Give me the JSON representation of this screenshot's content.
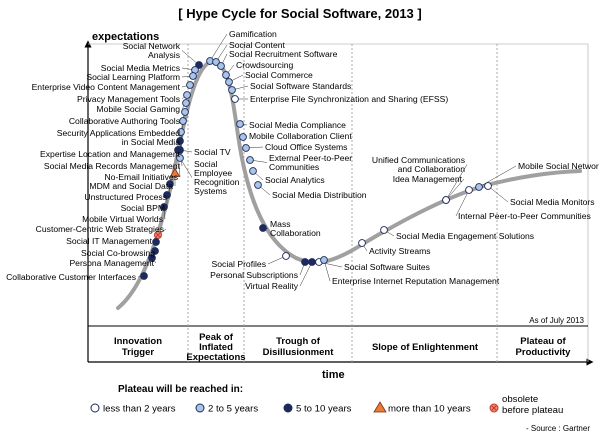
{
  "chart_data": {
    "type": "scatter",
    "title": "[ Hype Cycle for Social Software, 2013 ]",
    "ylabel": "expectations",
    "xlabel": "time",
    "as_of": "As of July 2013",
    "source": "-  Source : Gartner",
    "phases": [
      "Innovation Trigger",
      "Peak of Inflated Expectations",
      "Trough of Disillusionment",
      "Slope of Enlightenment",
      "Plateau of Productivity"
    ],
    "legend": {
      "title": "Plateau will be reached in:",
      "items": [
        {
          "key": "lt2",
          "label": "less than 2 years",
          "fill": "#ffffff"
        },
        {
          "key": "2to5",
          "label": "2 to 5 years",
          "fill": "#a9c6e6"
        },
        {
          "key": "5to10",
          "label": "5 to 10 years",
          "fill": "#1d2a5c"
        },
        {
          "key": "gt10",
          "label": "more than 10 years",
          "fill": "#e87a3a"
        },
        {
          "key": "obsolete",
          "label": "obsolete before plateau",
          "fill": "#f08a6a"
        }
      ]
    },
    "technologies": [
      {
        "name": "Gamification",
        "cat": "2to5"
      },
      {
        "name": "Social Content",
        "cat": "2to5"
      },
      {
        "name": "Social Recruitment Software",
        "cat": "2to5"
      },
      {
        "name": "Social Network Analysis",
        "cat": "5to10"
      },
      {
        "name": "Crowdsourcing",
        "cat": "2to5"
      },
      {
        "name": "Social Media Metrics",
        "cat": "2to5"
      },
      {
        "name": "Social Commerce",
        "cat": "2to5"
      },
      {
        "name": "Social Learning Platform",
        "cat": "2to5"
      },
      {
        "name": "Social Software Standards",
        "cat": "2to5"
      },
      {
        "name": "Enterprise Video Content Management",
        "cat": "2to5"
      },
      {
        "name": "Enterprise File Synchronization and Sharing (EFSS)",
        "cat": "lt2"
      },
      {
        "name": "Privacy Management Tools",
        "cat": "2to5"
      },
      {
        "name": "Mobile Social Gaming",
        "cat": "2to5"
      },
      {
        "name": "Collaborative Authoring Tools",
        "cat": "2to5"
      },
      {
        "name": "Security Applications Embedded in Social Media",
        "cat": "2to5"
      },
      {
        "name": "Expertise Location and Management",
        "cat": "2to5"
      },
      {
        "name": "Social Media Records Management",
        "cat": "5to10"
      },
      {
        "name": "No-Email Initiatives",
        "cat": "5to10"
      },
      {
        "name": "MDM and Social Data",
        "cat": "gt10"
      },
      {
        "name": "Unstructured Process",
        "cat": "5to10"
      },
      {
        "name": "Social BPM",
        "cat": "5to10"
      },
      {
        "name": "Mobile Virtual Worlds",
        "cat": "5to10"
      },
      {
        "name": "Customer-Centric Web Strategies",
        "cat": "obsolete"
      },
      {
        "name": "Social IT Management",
        "cat": "5to10"
      },
      {
        "name": "Social Co-browsing",
        "cat": "5to10"
      },
      {
        "name": "Persona Management",
        "cat": "5to10"
      },
      {
        "name": "Collaborative Customer Interfaces",
        "cat": "5to10"
      },
      {
        "name": "Social TV",
        "cat": "5to10"
      },
      {
        "name": "Social Employee Recognition Systems",
        "cat": "2to5"
      },
      {
        "name": "Social Media Compliance",
        "cat": "2to5"
      },
      {
        "name": "Mobile Collaboration Client",
        "cat": "2to5"
      },
      {
        "name": "Cloud Office Systems",
        "cat": "2to5"
      },
      {
        "name": "External Peer-to-Peer Communities",
        "cat": "2to5"
      },
      {
        "name": "Social Analytics",
        "cat": "2to5"
      },
      {
        "name": "Social Media Distribution",
        "cat": "2to5"
      },
      {
        "name": "Mass Collaboration",
        "cat": "5to10"
      },
      {
        "name": "Social Profiles",
        "cat": "lt2"
      },
      {
        "name": "Personal Subscriptions",
        "cat": "5to10"
      },
      {
        "name": "Virtual Reality",
        "cat": "5to10"
      },
      {
        "name": "Social Software Suites",
        "cat": "lt2"
      },
      {
        "name": "Enterprise Internet Reputation Management",
        "cat": "2to5"
      },
      {
        "name": "Activity Streams",
        "cat": "lt2"
      },
      {
        "name": "Social Media Engagement Solutions",
        "cat": "lt2"
      },
      {
        "name": "Unified Communications and Collaboration",
        "cat": "lt2"
      },
      {
        "name": "Idea Management",
        "cat": "lt2"
      },
      {
        "name": "Internal Peer-to-Peer Communities",
        "cat": "lt2"
      },
      {
        "name": "Social Media Monitors",
        "cat": "lt2"
      },
      {
        "name": "Mobile Social Networks",
        "cat": "2to5"
      }
    ]
  }
}
